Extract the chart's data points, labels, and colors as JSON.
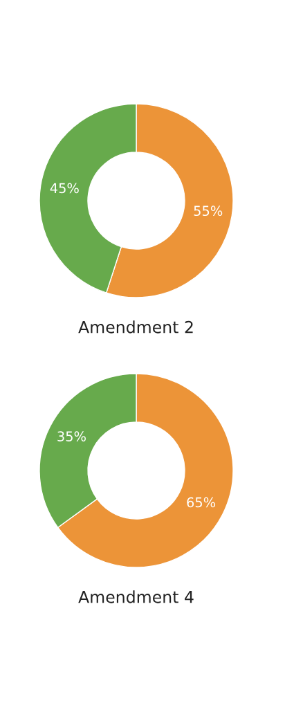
{
  "chart_data": [
    {
      "type": "donut",
      "title": "Amendment 2",
      "categories": [
        null,
        null
      ],
      "values": [
        55,
        45
      ],
      "colors": [
        "#ec9438",
        "#67aa4c"
      ],
      "value_labels": [
        "55%",
        "45%"
      ]
    },
    {
      "type": "donut",
      "title": "Amendment 4",
      "categories": [
        null,
        null
      ],
      "values": [
        65,
        35
      ],
      "colors": [
        "#ec9438",
        "#67aa4c"
      ],
      "value_labels": [
        "65%",
        "35%"
      ]
    }
  ]
}
